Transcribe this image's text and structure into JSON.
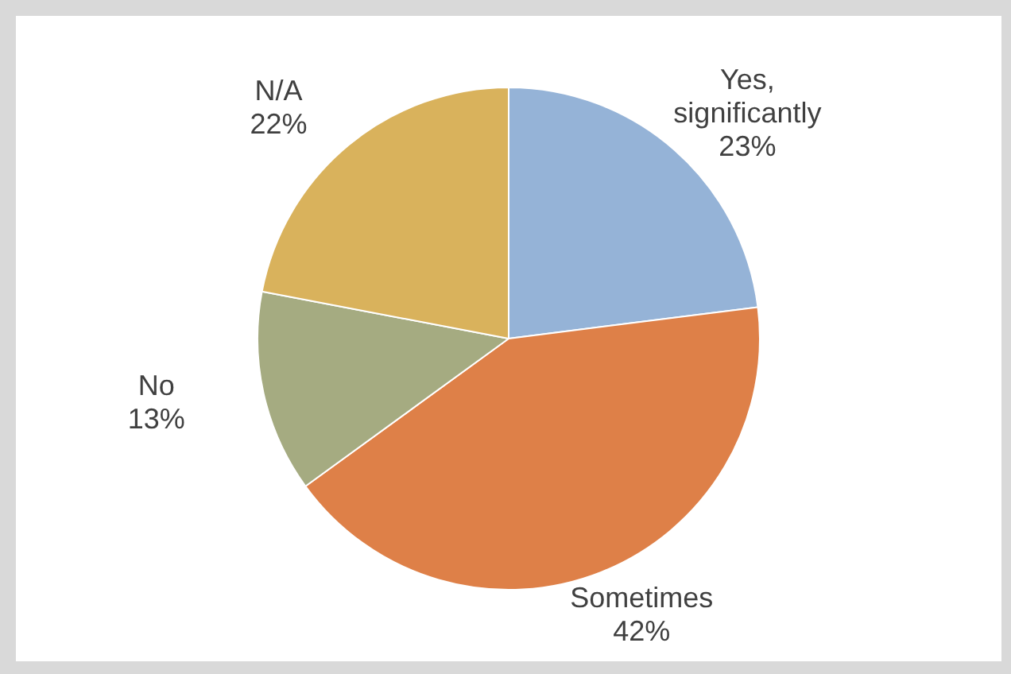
{
  "chart_data": {
    "type": "pie",
    "categories": [
      "Yes, significantly",
      "Sometimes",
      "No",
      "N/A"
    ],
    "values": [
      23,
      42,
      13,
      22
    ],
    "colors": [
      "#95b3d7",
      "#de8048",
      "#a5ab81",
      "#d9b25c"
    ],
    "value_labels": [
      "23%",
      "42%",
      "13%",
      "22%"
    ],
    "legend": false
  }
}
